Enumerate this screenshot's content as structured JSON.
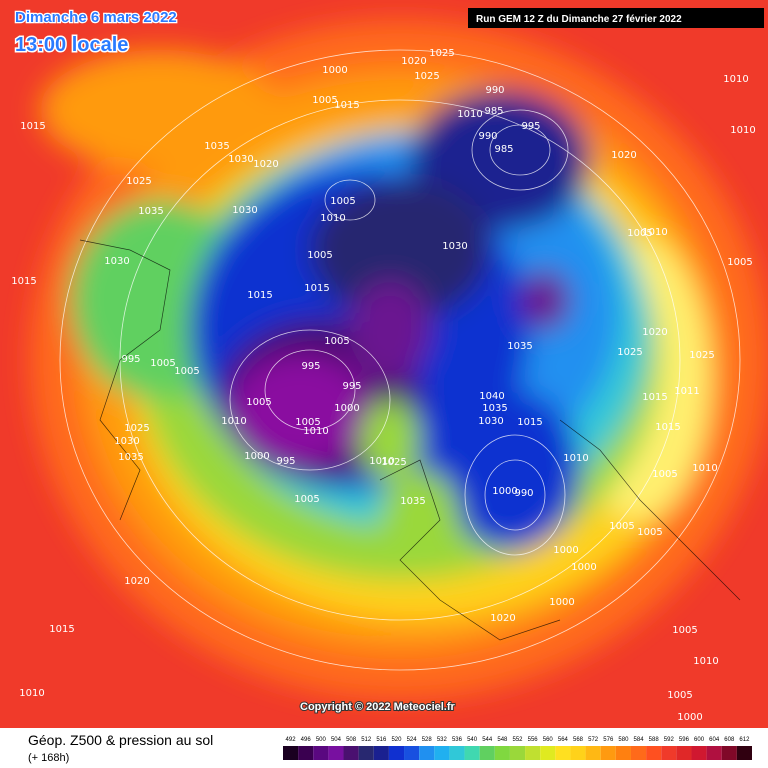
{
  "header": {
    "date": "Dimanche 6 mars 2022",
    "time": "13:00 locale",
    "run": "Run GEM 12 Z du Dimanche 27 février 2022"
  },
  "footer": {
    "title": "Géop. Z500 & pression au sol",
    "subtitle": "(+ 168h)",
    "copyright": "Copyright © 2022 Meteociel.fr"
  },
  "legend": {
    "values": [
      492,
      496,
      500,
      504,
      508,
      512,
      516,
      520,
      524,
      528,
      532,
      536,
      540,
      544,
      548,
      552,
      556,
      560,
      564,
      568,
      572,
      576,
      580,
      584,
      588,
      592,
      596,
      600,
      604,
      608,
      612
    ],
    "colors": [
      "#1a0020",
      "#3a0050",
      "#5a0880",
      "#7810a0",
      "#4a1070",
      "#282870",
      "#1a2090",
      "#1030d0",
      "#1850e0",
      "#2090f0",
      "#20b0f0",
      "#30c8d8",
      "#40d8b0",
      "#60d060",
      "#80d840",
      "#9ad83a",
      "#c0e030",
      "#e0ea20",
      "#ffe020",
      "#ffd21a",
      "#ffb814",
      "#ff9a10",
      "#ff8010",
      "#ff6a1a",
      "#ff5020",
      "#f03a2a",
      "#e02828",
      "#d01830",
      "#b01040",
      "#800828",
      "#300010"
    ]
  },
  "isobar_labels": [
    "1000",
    "1020",
    "1025",
    "1025",
    "1005",
    "1015",
    "1015",
    "1035",
    "1030",
    "1020",
    "1025",
    "1035",
    "1030",
    "1005",
    "1010",
    "1030",
    "1015",
    "1005",
    "1015",
    "1015",
    "990",
    "1010",
    "985",
    "995",
    "990",
    "985",
    "1020",
    "1005",
    "1010",
    "1005",
    "1010",
    "1010",
    "1030",
    "1035",
    "1020",
    "1025",
    "1025",
    "1011",
    "1015",
    "1015",
    "1010",
    "1005",
    "995",
    "1005",
    "995",
    "1000",
    "1005",
    "1010",
    "1005",
    "1010",
    "1000",
    "995",
    "1005",
    "1010",
    "1025",
    "1035",
    "1040",
    "1035",
    "1030",
    "1015",
    "1010",
    "1000",
    "990",
    "1005",
    "1005",
    "1000",
    "1000",
    "1000",
    "1020",
    "1005",
    "1010",
    "1005",
    "1000",
    "1015",
    "1020",
    "1010",
    "1035",
    "1030",
    "1025",
    "995",
    "1005",
    "1005"
  ]
}
